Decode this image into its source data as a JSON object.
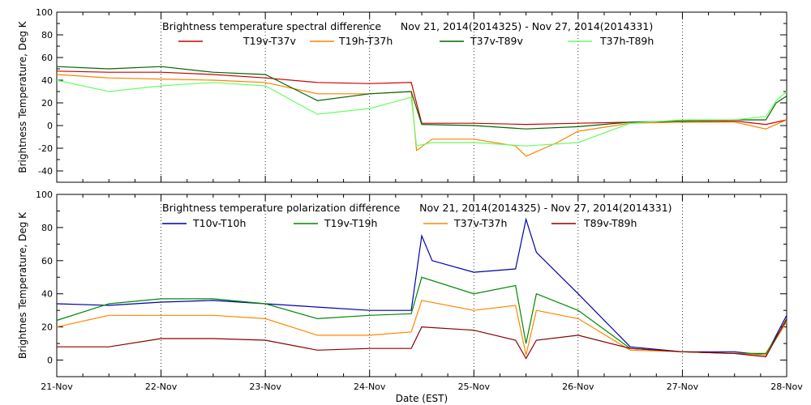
{
  "chart_data": [
    {
      "type": "line",
      "title": "Brightness temperature spectral difference      Nov 21, 2014(2014325) - Nov 27, 2014(2014331)",
      "ylabel": "Brightness Temperature, Deg K",
      "xlabel": "",
      "xlim": [
        "21-Nov",
        "28-Nov"
      ],
      "ylim": [
        -50,
        100
      ],
      "yticks": [
        -40,
        -20,
        0,
        20,
        40,
        60,
        80,
        100
      ],
      "grid": "dotted vertical at day boundaries",
      "legend_placement": "top",
      "series": [
        {
          "name": "T19v-T37v",
          "color": "#cc0000",
          "x": [
            0.0,
            0.5,
            1.0,
            1.5,
            2.0,
            2.5,
            3.0,
            3.4,
            3.5,
            4.0,
            4.5,
            5.0,
            5.5,
            6.0,
            6.5,
            6.8,
            7.0
          ],
          "y": [
            48,
            47,
            47,
            45,
            42,
            38,
            37,
            38,
            2,
            2,
            1,
            2,
            3,
            3,
            4,
            1,
            5
          ]
        },
        {
          "name": "T19h-T37h",
          "color": "#ff8000",
          "x": [
            0.0,
            0.5,
            1.0,
            1.5,
            2.0,
            2.5,
            3.0,
            3.4,
            3.45,
            3.6,
            4.0,
            4.4,
            4.5,
            4.8,
            5.0,
            5.5,
            6.0,
            6.5,
            6.8,
            7.0
          ],
          "y": [
            45,
            42,
            41,
            40,
            38,
            28,
            28,
            30,
            -22,
            -12,
            -12,
            -18,
            -27,
            -15,
            -5,
            2,
            3,
            3,
            -3,
            5
          ]
        },
        {
          "name": "T37v-T89v",
          "color": "#006600",
          "x": [
            0.0,
            0.5,
            1.0,
            1.5,
            2.0,
            2.5,
            3.0,
            3.4,
            3.5,
            4.0,
            4.5,
            5.0,
            5.5,
            6.0,
            6.5,
            6.8,
            6.9,
            7.0
          ],
          "y": [
            52,
            50,
            52,
            47,
            45,
            22,
            28,
            30,
            1,
            0,
            -3,
            -1,
            3,
            4,
            5,
            5,
            20,
            26
          ]
        },
        {
          "name": "T37h-T89h",
          "color": "#66ff66",
          "x": [
            0.0,
            0.5,
            1.0,
            1.5,
            2.0,
            2.5,
            3.0,
            3.4,
            3.45,
            3.6,
            4.0,
            4.5,
            5.0,
            5.5,
            6.0,
            6.5,
            6.8,
            6.9,
            7.0
          ],
          "y": [
            40,
            30,
            35,
            38,
            35,
            10,
            15,
            25,
            -18,
            -15,
            -15,
            -18,
            -15,
            2,
            5,
            5,
            8,
            22,
            30
          ]
        }
      ]
    },
    {
      "type": "line",
      "title": "Brightness temperature polarization difference      Nov 21, 2014(2014325) - Nov 27, 2014(2014331)",
      "ylabel": "Brightnes Temperature, Deg K",
      "xlabel": "Date (EST)",
      "xlim": [
        "21-Nov",
        "28-Nov"
      ],
      "ylim": [
        -10,
        100
      ],
      "yticks": [
        0,
        20,
        40,
        60,
        80,
        100
      ],
      "xticks": [
        "21-Nov",
        "22-Nov",
        "23-Nov",
        "24-Nov",
        "25-Nov",
        "26-Nov",
        "27-Nov",
        "28-Nov"
      ],
      "grid": "dotted vertical at day boundaries",
      "legend_placement": "top",
      "series": [
        {
          "name": "T10v-T10h",
          "color": "#0000aa",
          "x": [
            0.0,
            0.5,
            1.0,
            1.5,
            2.0,
            2.5,
            3.0,
            3.4,
            3.5,
            3.6,
            4.0,
            4.4,
            4.5,
            4.6,
            5.0,
            5.5,
            6.0,
            6.5,
            6.8,
            7.0
          ],
          "y": [
            34,
            33,
            35,
            36,
            34,
            32,
            30,
            30,
            75,
            60,
            53,
            55,
            85,
            65,
            40,
            8,
            5,
            5,
            3,
            27
          ]
        },
        {
          "name": "T19v-T19h",
          "color": "#008800",
          "x": [
            0.0,
            0.5,
            1.0,
            1.5,
            2.0,
            2.5,
            3.0,
            3.4,
            3.5,
            4.0,
            4.4,
            4.5,
            4.6,
            5.0,
            5.5,
            6.0,
            6.5,
            6.8,
            7.0
          ],
          "y": [
            24,
            34,
            37,
            37,
            34,
            25,
            27,
            28,
            50,
            40,
            45,
            10,
            40,
            30,
            7,
            5,
            4,
            4,
            24
          ]
        },
        {
          "name": "T37v-T37h",
          "color": "#ff8800",
          "x": [
            0.0,
            0.5,
            1.0,
            1.5,
            2.0,
            2.5,
            3.0,
            3.4,
            3.5,
            4.0,
            4.4,
            4.5,
            4.6,
            5.0,
            5.5,
            6.0,
            6.5,
            6.8,
            7.0
          ],
          "y": [
            20,
            27,
            27,
            27,
            25,
            15,
            15,
            17,
            36,
            30,
            33,
            3,
            30,
            25,
            6,
            5,
            4,
            3,
            23
          ]
        },
        {
          "name": "T89v-T89h",
          "color": "#880000",
          "x": [
            0.0,
            0.5,
            1.0,
            1.5,
            2.0,
            2.5,
            3.0,
            3.4,
            3.5,
            4.0,
            4.4,
            4.5,
            4.6,
            5.0,
            5.5,
            6.0,
            6.5,
            6.8,
            7.0
          ],
          "y": [
            8,
            8,
            13,
            13,
            12,
            6,
            7,
            7,
            20,
            18,
            12,
            1,
            12,
            15,
            7,
            5,
            4,
            2,
            25
          ]
        }
      ]
    }
  ]
}
